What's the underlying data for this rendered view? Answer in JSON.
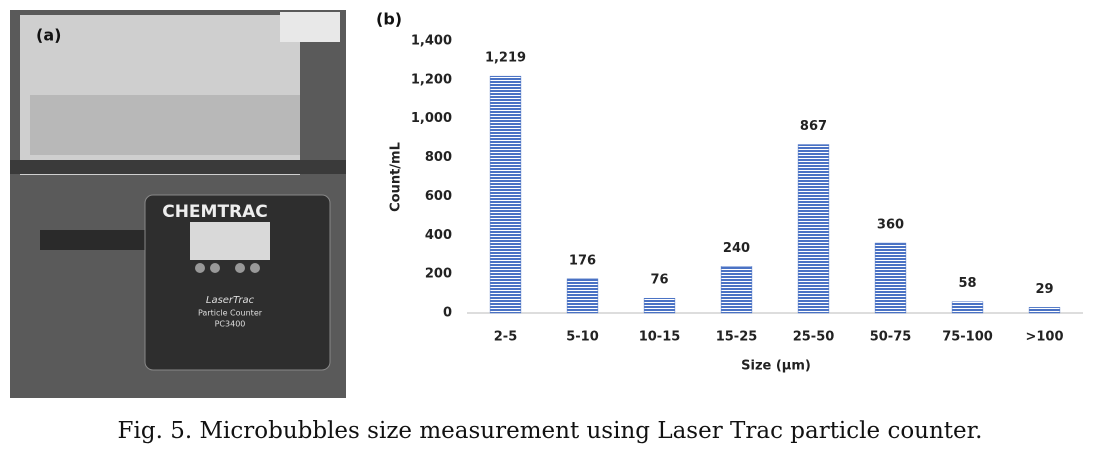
{
  "panels": {
    "a": "(a)",
    "b": "(b)"
  },
  "photo": {
    "brand": "CHEMTRAC",
    "model": "LaserTrac",
    "device": "Particle Counter",
    "code": "PC3400"
  },
  "caption": "Fig. 5. Microbubbles size measurement using Laser Trac particle counter.",
  "chart_data": {
    "type": "bar",
    "categories": [
      "2-5",
      "5-10",
      "10-15",
      "15-25",
      "25-50",
      "50-75",
      "75-100",
      ">100"
    ],
    "values": [
      1219,
      176,
      76,
      240,
      867,
      360,
      58,
      29
    ],
    "value_labels": [
      "1,219",
      "176",
      "76",
      "240",
      "867",
      "360",
      "58",
      "29"
    ],
    "color": "#4a72c4",
    "xlabel": "Size (µm)",
    "ylabel": "Count/mL",
    "ylim": [
      0,
      1400
    ],
    "yticks": [
      0,
      200,
      400,
      600,
      800,
      {
        "value": 1000,
        "label": "1,000"
      },
      {
        "value": 1200,
        "label": "1,200"
      },
      {
        "value": 1400,
        "label": "1,400"
      }
    ],
    "grid": false
  }
}
